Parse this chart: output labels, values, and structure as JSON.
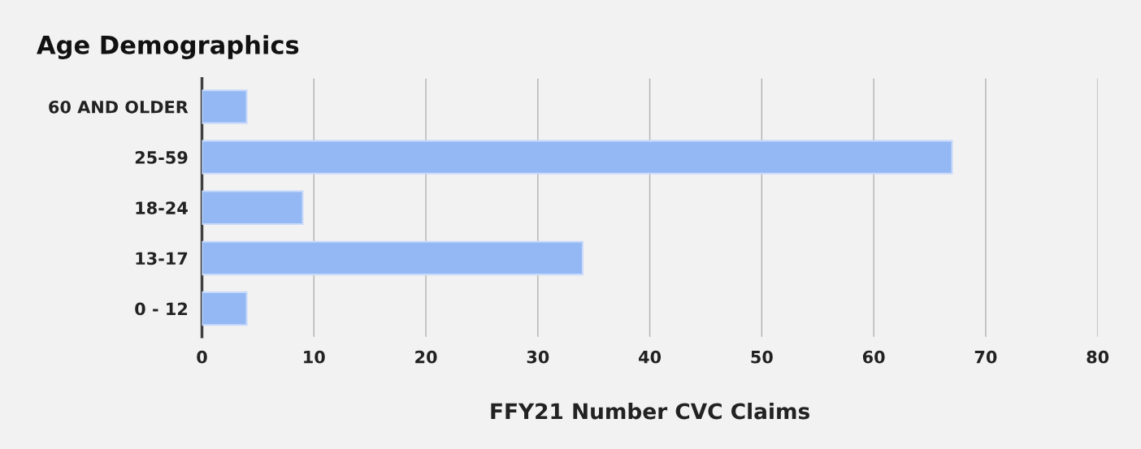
{
  "chart_data": {
    "type": "bar",
    "orientation": "horizontal",
    "title": "Age Demographics",
    "xlabel": "FFY21 Number CVC Claims",
    "categories": [
      "60 AND OLDER",
      "25-59",
      "18-24",
      "13-17",
      "0 - 12"
    ],
    "values": [
      4,
      67,
      9,
      34,
      4
    ],
    "color": "#93b8f4",
    "xlim": [
      0,
      80
    ],
    "xticks": [
      0,
      10,
      20,
      30,
      40,
      50,
      60,
      70,
      80
    ],
    "grid": "x",
    "legend": false
  }
}
